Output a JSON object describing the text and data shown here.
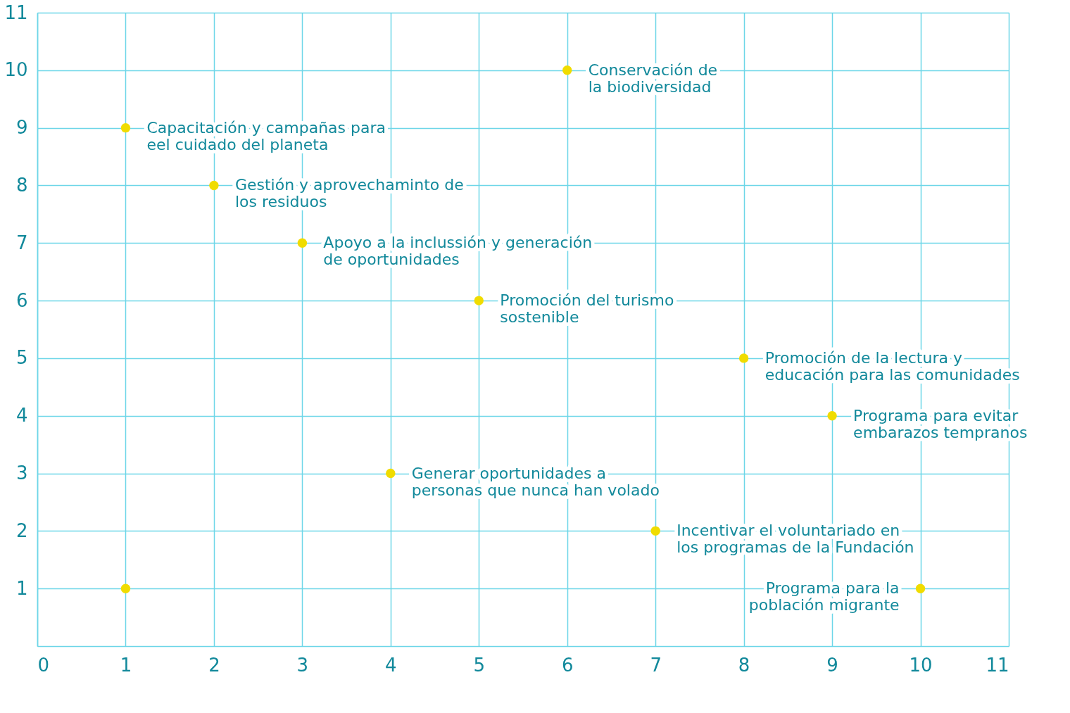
{
  "chart_data": {
    "type": "scatter",
    "color": "#f0dc00",
    "marker": "circle",
    "grid": true,
    "x": [
      6,
      1,
      2,
      3,
      5,
      8,
      9,
      4,
      7,
      10,
      1
    ],
    "values": [
      10,
      9,
      8,
      7,
      6,
      5,
      4,
      3,
      2,
      1,
      1
    ],
    "xlim": [
      0,
      11
    ],
    "ylim": [
      0,
      11
    ],
    "xticks": [
      0,
      1,
      2,
      3,
      4,
      5,
      6,
      7,
      8,
      9,
      10,
      11
    ],
    "yticks": [
      1,
      2,
      3,
      4,
      5,
      6,
      7,
      8,
      9,
      10,
      11
    ],
    "annotations": [
      {
        "text": "Conservación de\nla biodiversidad",
        "x": 6,
        "y": 10
      },
      {
        "text": "Capacitación y campañas para\neel cuidado del planeta",
        "x": 1,
        "y": 9
      },
      {
        "text": "Gestión y aprovechaminto de\nlos residuos",
        "x": 2,
        "y": 8
      },
      {
        "text": "Apoyo a la inclussión y generación\nde oportunidades",
        "x": 3,
        "y": 7
      },
      {
        "text": "Promoción del turismo\nsostenible",
        "x": 5,
        "y": 6
      },
      {
        "text": "Promoción de la lectura y\neducación para las comunidades",
        "x": 8,
        "y": 5
      },
      {
        "text": "Programa para evitar\nembarazos tempranos",
        "x": 9,
        "y": 4
      },
      {
        "text": "Generar oportunidades a\npersonas que nunca han volado",
        "x": 4,
        "y": 3
      },
      {
        "text": "Incentivar el voluntariado en\nlos programas de la Fundación",
        "x": 7,
        "y": 2
      },
      {
        "text": "Programa para la\npoblación migrante",
        "x": 10,
        "y": 1
      }
    ]
  }
}
